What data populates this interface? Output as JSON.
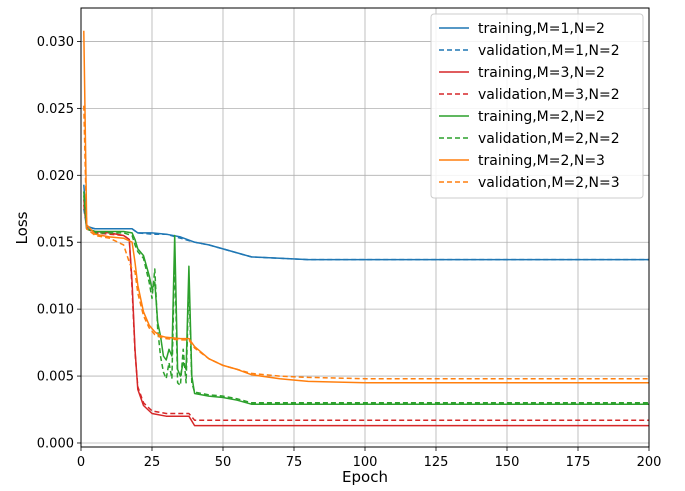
{
  "chart_data": {
    "type": "line",
    "xlabel": "Epoch",
    "ylabel": "Loss",
    "xlim": [
      0,
      200
    ],
    "ylim": [
      -0.0003,
      0.0325
    ],
    "xticks": [
      0,
      25,
      50,
      75,
      100,
      125,
      150,
      175,
      200
    ],
    "yticks": [
      0.0,
      0.005,
      0.01,
      0.015,
      0.02,
      0.025,
      0.03
    ],
    "ytick_labels": [
      "0.000",
      "0.005",
      "0.010",
      "0.015",
      "0.020",
      "0.025",
      "0.030"
    ],
    "grid": true,
    "legend_position": "top-right",
    "series": [
      {
        "name": "training,M=1,N=2",
        "color": "#1f77b4",
        "style": "solid",
        "points": [
          [
            1,
            0.0193
          ],
          [
            2,
            0.0162
          ],
          [
            5,
            0.016
          ],
          [
            10,
            0.016
          ],
          [
            15,
            0.016
          ],
          [
            18,
            0.016
          ],
          [
            20,
            0.0157
          ],
          [
            25,
            0.0157
          ],
          [
            30,
            0.0156
          ],
          [
            35,
            0.0154
          ],
          [
            40,
            0.015
          ],
          [
            45,
            0.0148
          ],
          [
            50,
            0.0145
          ],
          [
            55,
            0.0142
          ],
          [
            60,
            0.0139
          ],
          [
            70,
            0.0138
          ],
          [
            80,
            0.0137
          ],
          [
            100,
            0.0137
          ],
          [
            150,
            0.0137
          ],
          [
            200,
            0.0137
          ]
        ]
      },
      {
        "name": "validation,M=1,N=2",
        "color": "#1f77b4",
        "style": "dashed",
        "points": [
          [
            1,
            0.0175
          ],
          [
            2,
            0.0161
          ],
          [
            5,
            0.016
          ],
          [
            10,
            0.016
          ],
          [
            15,
            0.016
          ],
          [
            18,
            0.016
          ],
          [
            20,
            0.0157
          ],
          [
            25,
            0.0156
          ],
          [
            30,
            0.0156
          ],
          [
            35,
            0.0153
          ],
          [
            40,
            0.015
          ],
          [
            45,
            0.0148
          ],
          [
            50,
            0.0145
          ],
          [
            55,
            0.0142
          ],
          [
            60,
            0.0139
          ],
          [
            70,
            0.0138
          ],
          [
            80,
            0.0137
          ],
          [
            100,
            0.0137
          ],
          [
            150,
            0.0137
          ],
          [
            200,
            0.0137
          ]
        ]
      },
      {
        "name": "training,M=3,N=2",
        "color": "#d62728",
        "style": "solid",
        "points": [
          [
            1,
            0.0182
          ],
          [
            2,
            0.016
          ],
          [
            5,
            0.0158
          ],
          [
            10,
            0.0157
          ],
          [
            15,
            0.0155
          ],
          [
            17,
            0.0152
          ],
          [
            18,
            0.012
          ],
          [
            19,
            0.007
          ],
          [
            20,
            0.004
          ],
          [
            22,
            0.0028
          ],
          [
            25,
            0.0022
          ],
          [
            30,
            0.002
          ],
          [
            35,
            0.002
          ],
          [
            38,
            0.002
          ],
          [
            40,
            0.0013
          ],
          [
            50,
            0.0013
          ],
          [
            75,
            0.0013
          ],
          [
            100,
            0.0013
          ],
          [
            150,
            0.0013
          ],
          [
            200,
            0.0013
          ]
        ]
      },
      {
        "name": "validation,M=3,N=2",
        "color": "#d62728",
        "style": "dashed",
        "points": [
          [
            1,
            0.0178
          ],
          [
            2,
            0.016
          ],
          [
            5,
            0.0157
          ],
          [
            10,
            0.0156
          ],
          [
            15,
            0.0155
          ],
          [
            17,
            0.0152
          ],
          [
            18,
            0.0115
          ],
          [
            19,
            0.0068
          ],
          [
            20,
            0.0042
          ],
          [
            22,
            0.003
          ],
          [
            25,
            0.0024
          ],
          [
            30,
            0.0022
          ],
          [
            35,
            0.0022
          ],
          [
            38,
            0.0022
          ],
          [
            40,
            0.0017
          ],
          [
            50,
            0.0017
          ],
          [
            75,
            0.0017
          ],
          [
            100,
            0.0017
          ],
          [
            150,
            0.0017
          ],
          [
            200,
            0.0017
          ]
        ]
      },
      {
        "name": "training,M=2,N=2",
        "color": "#2ca02c",
        "style": "solid",
        "points": [
          [
            1,
            0.0188
          ],
          [
            2,
            0.016
          ],
          [
            5,
            0.0158
          ],
          [
            10,
            0.0158
          ],
          [
            15,
            0.0158
          ],
          [
            18,
            0.0157
          ],
          [
            19,
            0.0152
          ],
          [
            20,
            0.0145
          ],
          [
            22,
            0.014
          ],
          [
            24,
            0.0125
          ],
          [
            25,
            0.0115
          ],
          [
            26,
            0.012
          ],
          [
            27,
            0.009
          ],
          [
            28,
            0.008
          ],
          [
            29,
            0.0065
          ],
          [
            30,
            0.0062
          ],
          [
            31,
            0.007
          ],
          [
            32,
            0.0065
          ],
          [
            33,
            0.0155
          ],
          [
            34,
            0.0055
          ],
          [
            35,
            0.005
          ],
          [
            36,
            0.006
          ],
          [
            37,
            0.0055
          ],
          [
            38,
            0.0132
          ],
          [
            39,
            0.005
          ],
          [
            40,
            0.0037
          ],
          [
            45,
            0.0035
          ],
          [
            50,
            0.0034
          ],
          [
            55,
            0.0032
          ],
          [
            60,
            0.0029
          ],
          [
            75,
            0.0029
          ],
          [
            100,
            0.0029
          ],
          [
            150,
            0.0029
          ],
          [
            200,
            0.0029
          ]
        ]
      },
      {
        "name": "validation,M=2,N=2",
        "color": "#2ca02c",
        "style": "dashed",
        "points": [
          [
            1,
            0.0185
          ],
          [
            2,
            0.016
          ],
          [
            5,
            0.0157
          ],
          [
            10,
            0.0157
          ],
          [
            15,
            0.0157
          ],
          [
            18,
            0.0155
          ],
          [
            19,
            0.0148
          ],
          [
            20,
            0.0143
          ],
          [
            22,
            0.0138
          ],
          [
            24,
            0.012
          ],
          [
            25,
            0.0108
          ],
          [
            26,
            0.013
          ],
          [
            27,
            0.0085
          ],
          [
            28,
            0.0065
          ],
          [
            29,
            0.0053
          ],
          [
            30,
            0.0048
          ],
          [
            31,
            0.006
          ],
          [
            32,
            0.0048
          ],
          [
            33,
            0.014
          ],
          [
            34,
            0.0045
          ],
          [
            35,
            0.0043
          ],
          [
            36,
            0.007
          ],
          [
            37,
            0.0045
          ],
          [
            38,
            0.012
          ],
          [
            39,
            0.0045
          ],
          [
            40,
            0.0038
          ],
          [
            45,
            0.0036
          ],
          [
            50,
            0.0035
          ],
          [
            55,
            0.0033
          ],
          [
            60,
            0.003
          ],
          [
            75,
            0.003
          ],
          [
            100,
            0.003
          ],
          [
            150,
            0.003
          ],
          [
            200,
            0.003
          ]
        ]
      },
      {
        "name": "training,M=2,N=3",
        "color": "#ff7f0e",
        "style": "solid",
        "points": [
          [
            1,
            0.0308
          ],
          [
            2,
            0.0163
          ],
          [
            5,
            0.0156
          ],
          [
            10,
            0.0154
          ],
          [
            15,
            0.0153
          ],
          [
            18,
            0.015
          ],
          [
            19,
            0.0135
          ],
          [
            20,
            0.0118
          ],
          [
            22,
            0.0098
          ],
          [
            24,
            0.0088
          ],
          [
            26,
            0.0083
          ],
          [
            28,
            0.008
          ],
          [
            30,
            0.0079
          ],
          [
            35,
            0.0078
          ],
          [
            38,
            0.0078
          ],
          [
            40,
            0.0072
          ],
          [
            45,
            0.0063
          ],
          [
            50,
            0.0058
          ],
          [
            55,
            0.0055
          ],
          [
            60,
            0.0051
          ],
          [
            70,
            0.0048
          ],
          [
            80,
            0.0046
          ],
          [
            100,
            0.0045
          ],
          [
            125,
            0.0045
          ],
          [
            150,
            0.0045
          ],
          [
            175,
            0.0045
          ],
          [
            200,
            0.0045
          ]
        ]
      },
      {
        "name": "validation,M=2,N=3",
        "color": "#ff7f0e",
        "style": "dashed",
        "points": [
          [
            1,
            0.0252
          ],
          [
            2,
            0.016
          ],
          [
            5,
            0.0155
          ],
          [
            10,
            0.0153
          ],
          [
            15,
            0.0148
          ],
          [
            17,
            0.0135
          ],
          [
            18,
            0.013
          ],
          [
            19,
            0.0128
          ],
          [
            20,
            0.0112
          ],
          [
            22,
            0.0095
          ],
          [
            24,
            0.0086
          ],
          [
            26,
            0.0081
          ],
          [
            28,
            0.0079
          ],
          [
            30,
            0.0078
          ],
          [
            35,
            0.0077
          ],
          [
            38,
            0.0077
          ],
          [
            40,
            0.0071
          ],
          [
            45,
            0.0063
          ],
          [
            50,
            0.0058
          ],
          [
            55,
            0.0055
          ],
          [
            60,
            0.0052
          ],
          [
            70,
            0.005
          ],
          [
            80,
            0.0049
          ],
          [
            100,
            0.0048
          ],
          [
            125,
            0.0048
          ],
          [
            150,
            0.0048
          ],
          [
            175,
            0.0048
          ],
          [
            200,
            0.0048
          ]
        ]
      }
    ]
  }
}
